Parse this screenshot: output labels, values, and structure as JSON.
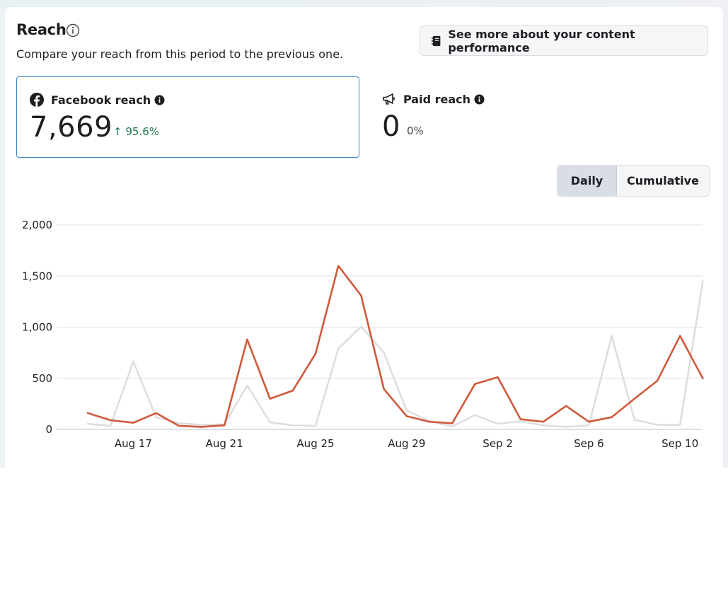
{
  "header": {
    "title": "Reach",
    "subtitle": "Compare your reach from this period to the previous one.",
    "perf_button_label": "See more about your content performance"
  },
  "metrics": {
    "facebook": {
      "label": "Facebook reach",
      "value": "7,669",
      "change_arrow": "↑",
      "change": "95.6%",
      "change_color": "#1d7a4a"
    },
    "paid": {
      "label": "Paid reach",
      "value": "0",
      "change": "0%"
    }
  },
  "toggle": {
    "daily": "Daily",
    "cumulative": "Cumulative",
    "selected": "Daily"
  },
  "icons": {
    "title_info": "info-outline-icon",
    "perf_button": "notebook-icon",
    "facebook": "facebook-icon",
    "paid": "megaphone-icon",
    "metric_info": "info-filled-icon"
  },
  "chart_data": {
    "type": "line",
    "y_ticks": [
      "2,000",
      "1,500",
      "1,000",
      "500",
      "0"
    ],
    "ylim": [
      0,
      2000
    ],
    "x_tick_labels": [
      "Aug 17",
      "Aug 21",
      "Aug 25",
      "Aug 29",
      "Sep 2",
      "Sep 6",
      "Sep 10"
    ],
    "x": [
      "Aug 15",
      "Aug 16",
      "Aug 17",
      "Aug 18",
      "Aug 19",
      "Aug 20",
      "Aug 21",
      "Aug 22",
      "Aug 23",
      "Aug 24",
      "Aug 25",
      "Aug 26",
      "Aug 27",
      "Aug 28",
      "Aug 29",
      "Aug 30",
      "Aug 31",
      "Sep 1",
      "Sep 2",
      "Sep 3",
      "Sep 4",
      "Sep 5",
      "Sep 6",
      "Sep 7",
      "Sep 8",
      "Sep 9",
      "Sep 10",
      "Sep 11"
    ],
    "grid": true,
    "series": [
      {
        "color": "#d0593c",
        "values": [
          160,
          90,
          65,
          160,
          35,
          25,
          40,
          880,
          300,
          380,
          740,
          1600,
          1310,
          395,
          130,
          75,
          60,
          445,
          510,
          100,
          75,
          230,
          75,
          120,
          300,
          475,
          915,
          500
        ]
      },
      {
        "color": "#dcdcdc",
        "values": [
          55,
          35,
          665,
          120,
          60,
          45,
          50,
          430,
          70,
          40,
          35,
          790,
          1005,
          750,
          185,
          80,
          30,
          140,
          55,
          80,
          40,
          25,
          40,
          915,
          95,
          45,
          45,
          1450
        ]
      }
    ]
  }
}
